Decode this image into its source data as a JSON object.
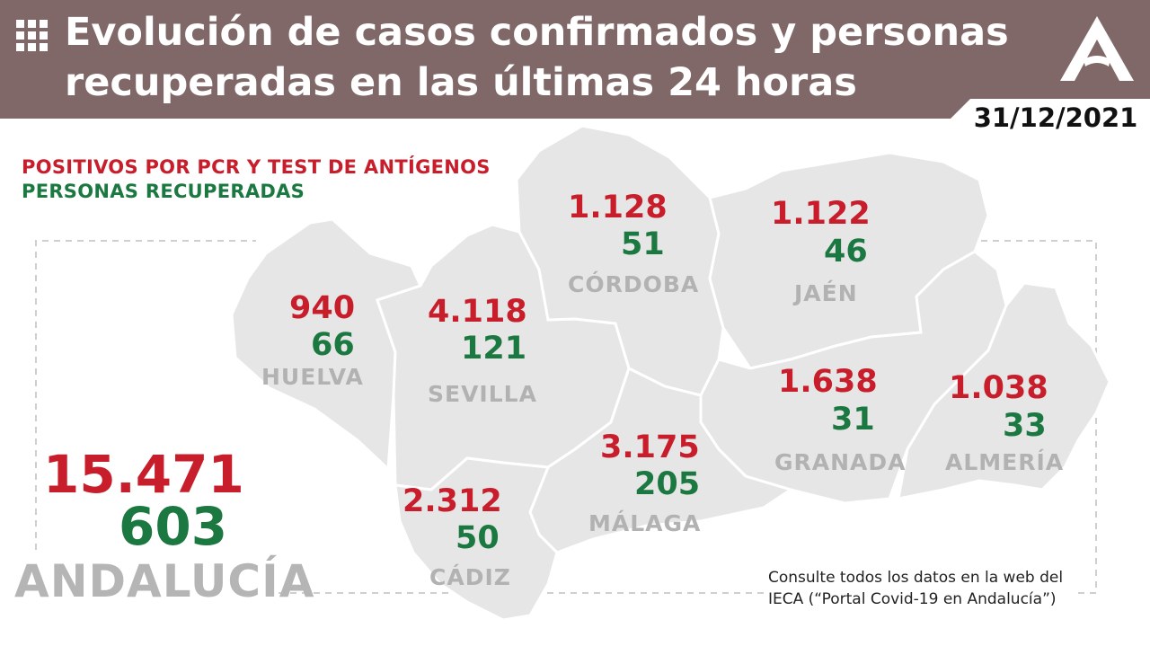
{
  "header": {
    "title_line1": "Evolución de casos confirmados y personas",
    "title_line2": "recuperadas en las últimas 24 horas",
    "date": "31/12/2021",
    "icons": [
      "grid-icon",
      "junta-andalucia-logo"
    ]
  },
  "legend": {
    "positives": "POSITIVOS POR PCR Y TEST DE ANTÍGENOS",
    "recovered": "PERSONAS RECUPERADAS"
  },
  "colors": {
    "header_bg": "#806868",
    "positives": "#c81e2c",
    "recovered": "#1c7841",
    "map_fill": "#e6e6e6",
    "label_gray": "#b2b2b2"
  },
  "provinces": {
    "huelva": {
      "name": "HUELVA",
      "positives": "940",
      "recovered": "66"
    },
    "sevilla": {
      "name": "SEVILLA",
      "positives": "4.118",
      "recovered": "121"
    },
    "cordoba": {
      "name": "CÓRDOBA",
      "positives": "1.128",
      "recovered": "51"
    },
    "jaen": {
      "name": "JAÉN",
      "positives": "1.122",
      "recovered": "46"
    },
    "granada": {
      "name": "GRANADA",
      "positives": "1.638",
      "recovered": "31"
    },
    "almeria": {
      "name": "ALMERÍA",
      "positives": "1.038",
      "recovered": "33"
    },
    "malaga": {
      "name": "MÁLAGA",
      "positives": "3.175",
      "recovered": "205"
    },
    "cadiz": {
      "name": "CÁDIZ",
      "positives": "2.312",
      "recovered": "50"
    }
  },
  "total": {
    "name": "ANDALUCÍA",
    "positives": "15.471",
    "recovered": "603"
  },
  "note": {
    "line1": "Consulte todos los datos en la web del",
    "line2": "IECA (“Portal Covid-19 en Andalucía”)"
  }
}
